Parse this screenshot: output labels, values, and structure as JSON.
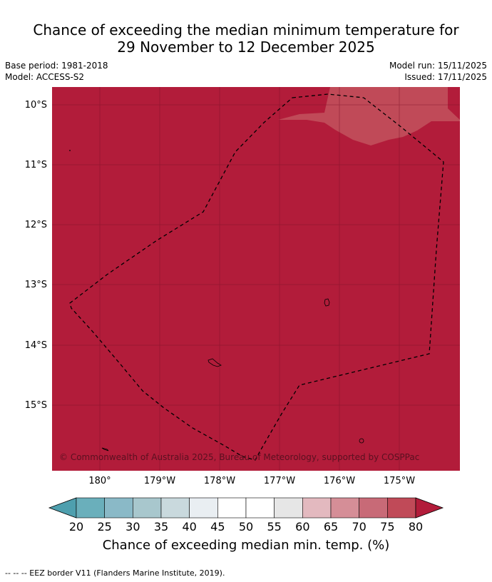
{
  "title": {
    "line1": "Chance of exceeding the median minimum temperature for",
    "line2": "29 November to 12 December 2025"
  },
  "meta": {
    "base_period": "Base period: 1981-2018",
    "model": "Model: ACCESS-S2",
    "model_run": "Model run: 15/11/2025",
    "issued": "Issued: 17/11/2025"
  },
  "map": {
    "lat_labels": [
      "10°S",
      "11°S",
      "12°S",
      "13°S",
      "14°S",
      "15°S"
    ],
    "lon_labels": [
      "180°",
      "179°W",
      "178°W",
      "177°W",
      "176°W",
      "175°W"
    ],
    "copyright": "© Commonwealth of Australia 2025, Bureau of Meteorology, supported by COSPPac",
    "background_category": "80+",
    "colors": {
      "dominant": "#b21c3a",
      "secondary": "#c04a58",
      "border": "#000000"
    }
  },
  "colorbar": {
    "title": "Chance of exceeding median min. temp. (%)",
    "ticks": [
      "20",
      "25",
      "30",
      "35",
      "40",
      "45",
      "50",
      "55",
      "60",
      "65",
      "70",
      "75",
      "80"
    ],
    "colors": [
      "#4e9fae",
      "#6aafbb",
      "#8ab9c7",
      "#a8c7cd",
      "#c9d9dd",
      "#e9eef2",
      "#ffffff",
      "#ffffff",
      "#e6e6e6",
      "#e3b9bf",
      "#d58e97",
      "#c86a77",
      "#c04a58",
      "#b21c3a"
    ]
  },
  "footnote": "--  --  -- EEZ border V11 (Flanders Marine Institute, 2019)."
}
